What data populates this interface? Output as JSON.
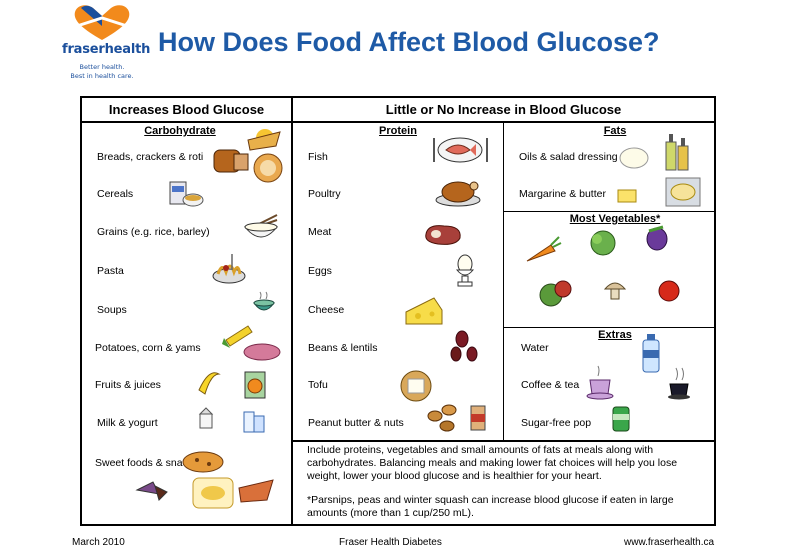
{
  "logo": {
    "name": "fraserhealth",
    "tagline_1": "Better health.",
    "tagline_2": "Best in health care."
  },
  "title": "How Does Food Affect Blood Glucose?",
  "columns": {
    "increases": "Increases Blood Glucose",
    "little": "Little or No Increase in Blood Glucose"
  },
  "carbohydrate": {
    "heading": "Carbohydrate",
    "items": [
      "Breads, crackers & roti",
      "Cereals",
      "Grains (e.g. rice, barley)",
      "Pasta",
      "Soups",
      "Potatoes, corn & yams",
      "Fruits & juices",
      "Milk & yogurt",
      "Sweet foods & snacks"
    ]
  },
  "protein": {
    "heading": "Protein",
    "items": [
      "Fish",
      "Poultry",
      "Meat",
      "Eggs",
      "Cheese",
      "Beans & lentils",
      "Tofu",
      "Peanut butter & nuts"
    ]
  },
  "fats": {
    "heading": "Fats",
    "items": [
      "Oils & salad dressing",
      "Margarine & butter"
    ]
  },
  "vegetables": {
    "heading": "Most Vegetables*"
  },
  "extras": {
    "heading": "Extras",
    "items": [
      "Water",
      "Coffee & tea",
      "Sugar-free pop"
    ]
  },
  "note": {
    "para1": "Include proteins, vegetables and small amounts of fats at meals along with carbohydrates. Balancing meals and making lower fat choices will help you lose weight, lower your blood glucose and is healthier for your heart.",
    "para2": "*Parsnips, peas and winter squash can increase blood glucose if eaten in large amounts (more than 1 cup/250 mL)."
  },
  "footer": {
    "date": "March 2010",
    "org": "Fraser Health Diabetes",
    "url": "www.fraserhealth.ca"
  }
}
